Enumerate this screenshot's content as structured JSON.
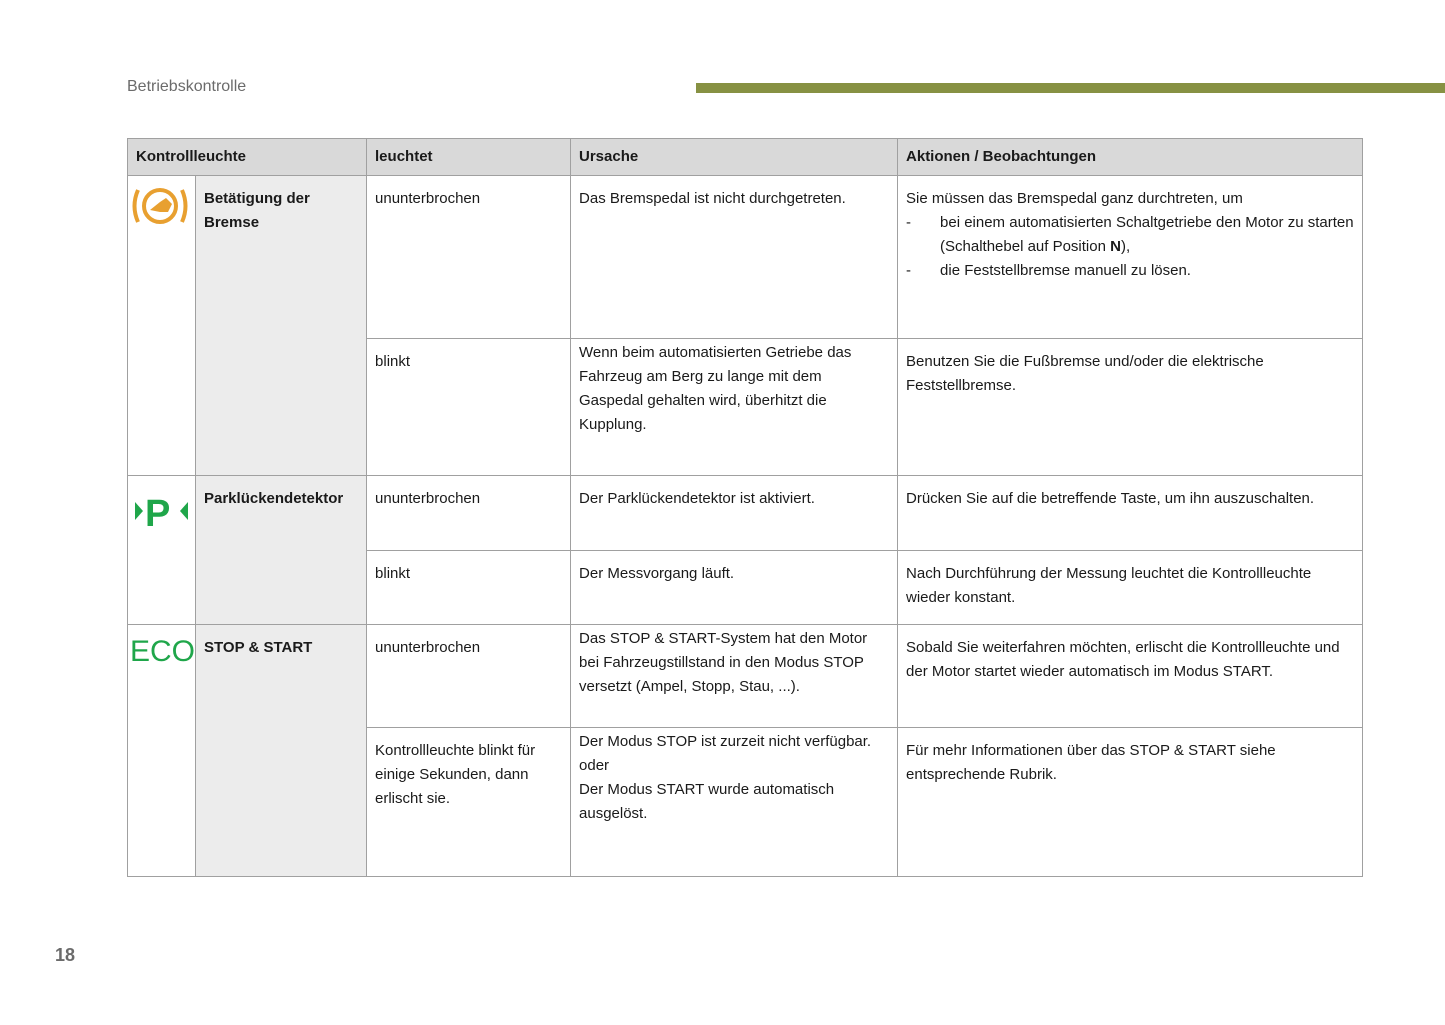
{
  "header": {
    "section": "Betriebskontrolle",
    "page_number": "18",
    "accent_color": "#879143"
  },
  "table": {
    "columns": [
      "Kontrollleuchte",
      "leuchtet",
      "Ursache",
      "Aktionen / Beobachtungen"
    ],
    "groups": [
      {
        "name": "Betätigung der Bremse",
        "icon": "brake-pedal-warning-icon",
        "icon_color": "#e8a030",
        "rows": [
          {
            "leuchtet": "ununterbrochen",
            "ursache": "Das Bremspedal ist nicht durchgetreten.",
            "aktion_intro": "Sie müssen das Bremspedal ganz durchtreten, um",
            "aktion_items": [
              "bei einem automatisierten Schaltgetriebe den Motor zu starten (Schalthebel auf Position ",
              "die Feststellbremse manuell zu lösen."
            ],
            "aktion_bold": "N",
            "aktion_after_bold": "),"
          },
          {
            "leuchtet": "blinkt",
            "ursache": "Wenn beim automatisierten Getriebe das Fahrzeug am Berg zu lange mit dem Gaspedal gehalten wird, überhitzt die Kupplung.",
            "aktion": "Benutzen Sie die Fußbremse und/oder die elektrische Feststellbremse."
          }
        ]
      },
      {
        "name": "Parklückendetektor",
        "icon": "parking-detector-icon",
        "icon_color": "#1fa64a",
        "rows": [
          {
            "leuchtet": "ununterbrochen",
            "ursache": "Der Parklückendetektor ist aktiviert.",
            "aktion": "Drücken Sie auf die betreffende Taste, um ihn auszuschalten."
          },
          {
            "leuchtet": "blinkt",
            "ursache": "Der Messvorgang läuft.",
            "aktion": "Nach Durchführung der Messung leuchtet die Kontrollleuchte wieder konstant."
          }
        ]
      },
      {
        "name": "STOP & START",
        "icon": "eco-icon",
        "icon_color": "#1fa64a",
        "icon_text": "ECO",
        "rows": [
          {
            "leuchtet": "ununterbrochen",
            "ursache": "Das STOP & START-System hat den Motor bei Fahrzeugstillstand in den Modus STOP versetzt (Ampel, Stopp, Stau, ...).",
            "aktion": "Sobald Sie weiterfahren möchten, erlischt die Kontrollleuchte und der Motor startet wieder automatisch im Modus START."
          },
          {
            "leuchtet": "Kontrollleuchte blinkt für einige Sekunden, dann erlischt sie.",
            "ursache_lines": [
              "Der Modus STOP ist zurzeit nicht verfügbar.",
              "oder",
              "Der Modus START wurde automatisch ausgelöst."
            ],
            "aktion": "Für mehr Informationen über das STOP & START siehe entsprechende Rubrik."
          }
        ]
      }
    ]
  }
}
